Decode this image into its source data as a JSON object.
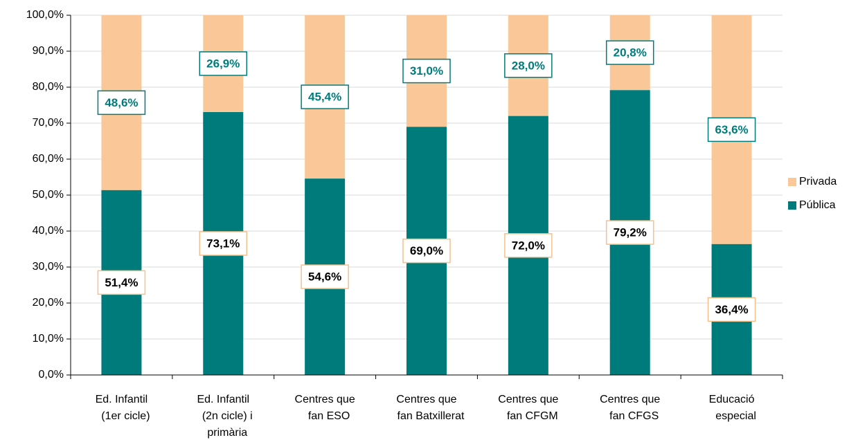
{
  "chart_data": {
    "type": "stacked_bar",
    "categories": [
      "Ed. Infantil\n(1er cicle)",
      "Ed. Infantil\n(2n cicle) i\nprimària",
      "Centres que\nfan ESO",
      "Centres que\nfan Batxillerat",
      "Centres que\nfan CFGM",
      "Centres que\nfan CFGS",
      "Educació\nespecial"
    ],
    "series": [
      {
        "name": "Pública",
        "color": "#007b7b",
        "values": [
          51.4,
          73.1,
          54.6,
          69.0,
          72.0,
          79.2,
          36.4
        ],
        "value_labels": [
          "51,4%",
          "73,1%",
          "54,6%",
          "69,0%",
          "72,0%",
          "79,2%",
          "36,4%"
        ]
      },
      {
        "name": "Privada",
        "color": "#fac898",
        "values": [
          48.6,
          26.9,
          45.4,
          31.0,
          28.0,
          20.8,
          63.6
        ],
        "value_labels": [
          "48,6%",
          "26,9%",
          "45,4%",
          "31,0%",
          "28,0%",
          "20,8%",
          "63,6%"
        ]
      }
    ],
    "ylim": [
      0,
      100
    ],
    "yticks": [
      {
        "value": 0,
        "label": "0,0%"
      },
      {
        "value": 10,
        "label": "10,0%"
      },
      {
        "value": 20,
        "label": "20,0%"
      },
      {
        "value": 30,
        "label": "30,0%"
      },
      {
        "value": 40,
        "label": "40,0%"
      },
      {
        "value": 50,
        "label": "50,0%"
      },
      {
        "value": 60,
        "label": "60,0%"
      },
      {
        "value": 70,
        "label": "70,0%"
      },
      {
        "value": 80,
        "label": "80,0%"
      },
      {
        "value": 90,
        "label": "90,0%"
      },
      {
        "value": 100,
        "label": "100,0%"
      }
    ],
    "grid": true,
    "legend": "right"
  }
}
